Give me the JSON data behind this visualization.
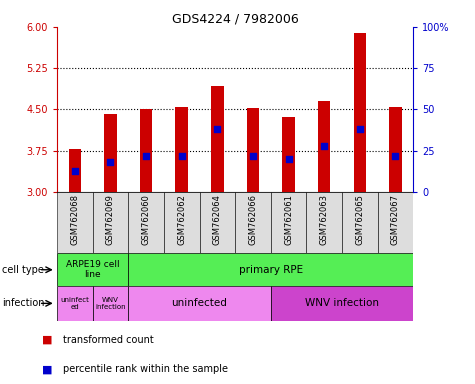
{
  "title": "GDS4224 / 7982006",
  "samples": [
    "GSM762068",
    "GSM762069",
    "GSM762060",
    "GSM762062",
    "GSM762064",
    "GSM762066",
    "GSM762061",
    "GSM762063",
    "GSM762065",
    "GSM762067"
  ],
  "transformed_counts": [
    3.78,
    4.42,
    4.5,
    4.55,
    4.93,
    4.52,
    4.37,
    4.65,
    5.88,
    4.55
  ],
  "percentile_ranks": [
    13,
    18,
    22,
    22,
    38,
    22,
    20,
    28,
    38,
    22
  ],
  "ylim_left": [
    3,
    6
  ],
  "ylim_right": [
    0,
    100
  ],
  "yticks_left": [
    3,
    3.75,
    4.5,
    5.25,
    6
  ],
  "yticks_right": [
    0,
    25,
    50,
    75,
    100
  ],
  "ytick_labels_right": [
    "0",
    "25",
    "50",
    "75",
    "100%"
  ],
  "dotted_lines": [
    3.75,
    4.5,
    5.25
  ],
  "bar_color": "#cc0000",
  "dot_color": "#0000cc",
  "bar_bottom": 3.0,
  "bar_width": 0.35,
  "left_axis_color": "#cc0000",
  "right_axis_color": "#0000cc",
  "cell_type_green": "#55ee55",
  "infection_light_purple": "#ee88ee",
  "infection_dark_purple": "#cc44cc",
  "sample_bg": "#dddddd",
  "legend_items": [
    {
      "label": "transformed count",
      "color": "#cc0000"
    },
    {
      "label": "percentile rank within the sample",
      "color": "#0000cc"
    }
  ],
  "background_color": "white"
}
